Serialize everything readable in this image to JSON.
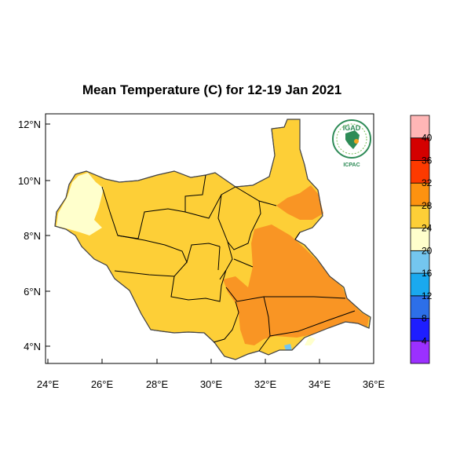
{
  "title": "Mean Temperature (C) for 12-19 Jan 2021",
  "x_ticks": [
    "24°E",
    "26°E",
    "28°E",
    "30°E",
    "32°E",
    "34°E",
    "36°E"
  ],
  "y_ticks": [
    "4°N",
    "6°N",
    "8°N",
    "10°N",
    "12°N"
  ],
  "colorbar": {
    "labels": [
      "4",
      "8",
      "12",
      "16",
      "20",
      "24",
      "28",
      "32",
      "36",
      "40"
    ],
    "colors": [
      "#9b30ff",
      "#1e1eff",
      "#2d6fe8",
      "#1aa9ef",
      "#74c6ef",
      "#ffffcc",
      "#fdcf37",
      "#fd9210",
      "#fd3a00",
      "#d40000",
      "#ffb6b6"
    ]
  },
  "logo": {
    "top_text": "IGAD",
    "bottom_text": "ICPAC"
  },
  "colors": {
    "warm_28_32": "#fdcf37",
    "hot_32_36": "#f99524",
    "mild_24_28": "#ffffcc",
    "cool_20_24": "#74c6ef",
    "border": "#000000"
  }
}
